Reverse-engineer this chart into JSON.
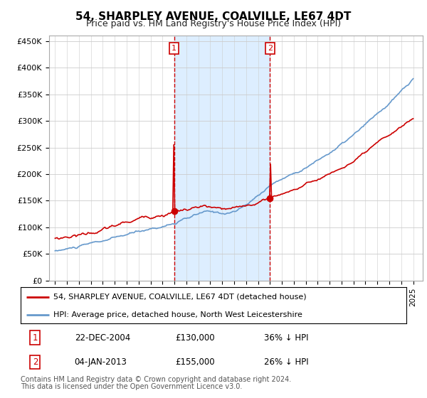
{
  "title": "54, SHARPLEY AVENUE, COALVILLE, LE67 4DT",
  "subtitle": "Price paid vs. HM Land Registry's House Price Index (HPI)",
  "ylim": [
    0,
    460000
  ],
  "yticks": [
    0,
    50000,
    100000,
    150000,
    200000,
    250000,
    300000,
    350000,
    400000,
    450000
  ],
  "ytick_labels": [
    "£0",
    "£50K",
    "£100K",
    "£150K",
    "£200K",
    "£250K",
    "£300K",
    "£350K",
    "£400K",
    "£450K"
  ],
  "sale1_date_num": 2004.97,
  "sale1_price": 130000,
  "sale1_label": "1",
  "sale2_date_num": 2013.01,
  "sale2_price": 155000,
  "sale2_label": "2",
  "hpi_color": "#6699cc",
  "price_color": "#cc0000",
  "vline_color": "#cc0000",
  "shade_color": "#ddeeff",
  "legend_entries": [
    "54, SHARPLEY AVENUE, COALVILLE, LE67 4DT (detached house)",
    "HPI: Average price, detached house, North West Leicestershire"
  ],
  "table_rows": [
    [
      "1",
      "22-DEC-2004",
      "£130,000",
      "36% ↓ HPI"
    ],
    [
      "2",
      "04-JAN-2013",
      "£155,000",
      "26% ↓ HPI"
    ]
  ],
  "footnote1": "Contains HM Land Registry data © Crown copyright and database right 2024.",
  "footnote2": "This data is licensed under the Open Government Licence v3.0."
}
